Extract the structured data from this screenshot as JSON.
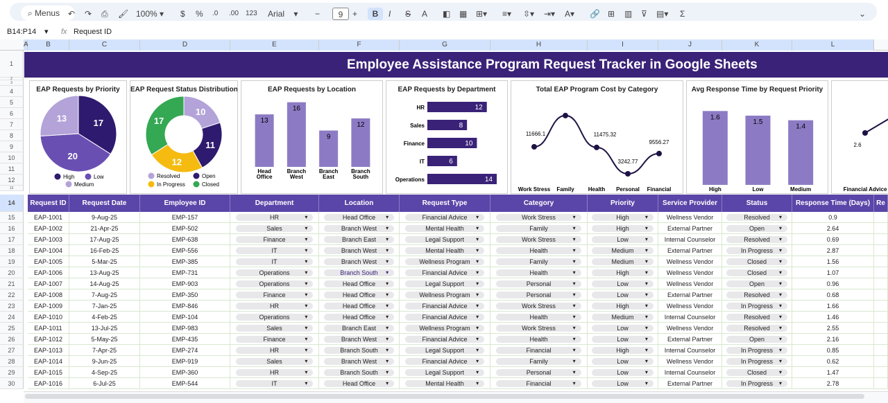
{
  "toolbar": {
    "menus": "Menus",
    "zoom": "100%",
    "currency": "$",
    "percent": "%",
    "dec_less": ".0",
    "dec_more": ".00",
    "format": "123",
    "font": "Arial",
    "font_size": "9",
    "minus": "−",
    "plus": "+",
    "bold": "B",
    "italic": "I",
    "strike": "S",
    "text_color": "A",
    "functions": "Σ"
  },
  "formula_bar": {
    "cell_ref": "B14:P14",
    "fx": "fx",
    "value": "Request ID"
  },
  "columns": [
    "A",
    "B",
    "C",
    "D",
    "E",
    "F",
    "G",
    "H",
    "I",
    "J",
    "K",
    "L"
  ],
  "rows": [
    "1",
    "2",
    "3",
    "4",
    "5",
    "6",
    "7",
    "8",
    "9",
    "10",
    "11",
    "12",
    "13",
    "14",
    "15",
    "16",
    "17",
    "18",
    "19",
    "20",
    "21",
    "22",
    "23",
    "24",
    "25",
    "26",
    "27",
    "28",
    "29",
    "30"
  ],
  "title": "Employee Assistance Program Request Tracker in Google Sheets",
  "chart_data": [
    {
      "type": "pie",
      "title": "EAP Requests by Priority",
      "categories": [
        "High",
        "Low",
        "Medium"
      ],
      "values": [
        17,
        20,
        13
      ],
      "colors": [
        "#2e1a6e",
        "#6a4fb3",
        "#b3a3d9"
      ]
    },
    {
      "type": "pie",
      "donut": true,
      "title": "EAP Request Status Distribution",
      "categories": [
        "Resolved",
        "Open",
        "In Progress",
        "Closed"
      ],
      "values": [
        10,
        11,
        12,
        17
      ],
      "colors": [
        "#b3a3d9",
        "#2e1a6e",
        "#f6bb10",
        "#34a853"
      ]
    },
    {
      "type": "bar",
      "title": "EAP Requests by Location",
      "categories": [
        "Head Office",
        "Branch West",
        "Branch East",
        "Branch South"
      ],
      "values": [
        13,
        16,
        9,
        12
      ],
      "color": "#8c7bc4"
    },
    {
      "type": "bar",
      "orientation": "horizontal",
      "title": "EAP Requests by Department",
      "categories": [
        "HR",
        "Sales",
        "Finance",
        "IT",
        "Operations"
      ],
      "values": [
        12,
        8,
        10,
        6,
        14
      ],
      "color": "#3a2278"
    },
    {
      "type": "line",
      "title": "Total EAP Program Cost by Category",
      "categories": [
        "Work Stress",
        "Family",
        "Health",
        "Personal",
        "Financial"
      ],
      "values": [
        11666.1,
        21400,
        11475.32,
        3242.77,
        9556.27
      ],
      "labels": [
        "11666.1",
        "",
        "11475.32",
        "3242.77",
        "9556.27"
      ],
      "color": "#1e1245"
    },
    {
      "type": "bar",
      "title": "Avg Response Time by Request Priority",
      "categories": [
        "High",
        "Low",
        "Medium"
      ],
      "values": [
        1.6,
        1.5,
        1.4
      ],
      "color": "#8c7bc4"
    },
    {
      "type": "line",
      "title": "",
      "categories": [
        "Financial Advice"
      ],
      "values": [
        2.6
      ],
      "labels": [
        "2.6"
      ],
      "color": "#1e1245"
    }
  ],
  "table": {
    "headers": [
      "Request ID",
      "Request Date",
      "Employee ID",
      "Department",
      "Location",
      "Request Type",
      "Category",
      "Priority",
      "Service Provider",
      "Status",
      "Response Time (Days)",
      "Re"
    ],
    "dropdown_columns": [
      3,
      4,
      5,
      6,
      7,
      9
    ],
    "rows": [
      [
        "EAP-1001",
        "9-Aug-25",
        "EMP-157",
        "HR",
        "Head Office",
        "Financial Advice",
        "Work Stress",
        "High",
        "Wellness Vendor",
        "Resolved",
        "0.9"
      ],
      [
        "EAP-1002",
        "21-Apr-25",
        "EMP-502",
        "Sales",
        "Branch West",
        "Mental Health",
        "Family",
        "High",
        "External Partner",
        "Open",
        "2.64"
      ],
      [
        "EAP-1003",
        "17-Aug-25",
        "EMP-638",
        "Finance",
        "Branch East",
        "Legal Support",
        "Work Stress",
        "Low",
        "Internal Counselor",
        "Resolved",
        "0.69"
      ],
      [
        "EAP-1004",
        "16-Feb-25",
        "EMP-556",
        "IT",
        "Branch West",
        "Mental Health",
        "Health",
        "Medium",
        "External Partner",
        "In Progress",
        "2.87"
      ],
      [
        "EAP-1005",
        "5-Mar-25",
        "EMP-385",
        "IT",
        "Branch West",
        "Wellness Program",
        "Family",
        "Medium",
        "Wellness Vendor",
        "Closed",
        "1.56"
      ],
      [
        "EAP-1006",
        "13-Aug-25",
        "EMP-731",
        "Operations",
        "Branch South",
        "Financial Advice",
        "Health",
        "High",
        "Wellness Vendor",
        "Closed",
        "1.07"
      ],
      [
        "EAP-1007",
        "14-Aug-25",
        "EMP-903",
        "Operations",
        "Head Office",
        "Legal Support",
        "Personal",
        "Low",
        "Wellness Vendor",
        "Open",
        "0.96"
      ],
      [
        "EAP-1008",
        "7-Aug-25",
        "EMP-350",
        "Finance",
        "Head Office",
        "Wellness Program",
        "Personal",
        "Low",
        "External Partner",
        "Resolved",
        "0.68"
      ],
      [
        "EAP-1009",
        "7-Jan-25",
        "EMP-846",
        "HR",
        "Head Office",
        "Financial Advice",
        "Work Stress",
        "High",
        "Wellness Vendor",
        "In Progress",
        "1.66"
      ],
      [
        "EAP-1010",
        "4-Feb-25",
        "EMP-104",
        "Operations",
        "Head Office",
        "Financial Advice",
        "Health",
        "Medium",
        "Internal Counselor",
        "Resolved",
        "1.46"
      ],
      [
        "EAP-1011",
        "13-Jul-25",
        "EMP-983",
        "Sales",
        "Branch East",
        "Wellness Program",
        "Work Stress",
        "Low",
        "Wellness Vendor",
        "Resolved",
        "2.55"
      ],
      [
        "EAP-1012",
        "5-May-25",
        "EMP-435",
        "Finance",
        "Branch West",
        "Financial Advice",
        "Health",
        "Low",
        "External Partner",
        "Open",
        "2.16"
      ],
      [
        "EAP-1013",
        "7-Apr-25",
        "EMP-274",
        "HR",
        "Branch South",
        "Legal Support",
        "Financial",
        "High",
        "Internal Counselor",
        "In Progress",
        "0.85"
      ],
      [
        "EAP-1014",
        "9-Jun-25",
        "EMP-919",
        "Sales",
        "Branch West",
        "Financial Advice",
        "Family",
        "Low",
        "Wellness Vendor",
        "In Progress",
        "0.62"
      ],
      [
        "EAP-1015",
        "4-Sep-25",
        "EMP-360",
        "HR",
        "Branch South",
        "Legal Support",
        "Personal",
        "Low",
        "Internal Counselor",
        "Closed",
        "1.47"
      ],
      [
        "EAP-1016",
        "6-Jul-25",
        "EMP-544",
        "IT",
        "Head Office",
        "Mental Health",
        "Financial",
        "Low",
        "External Partner",
        "In Progress",
        "2.78"
      ]
    ]
  }
}
